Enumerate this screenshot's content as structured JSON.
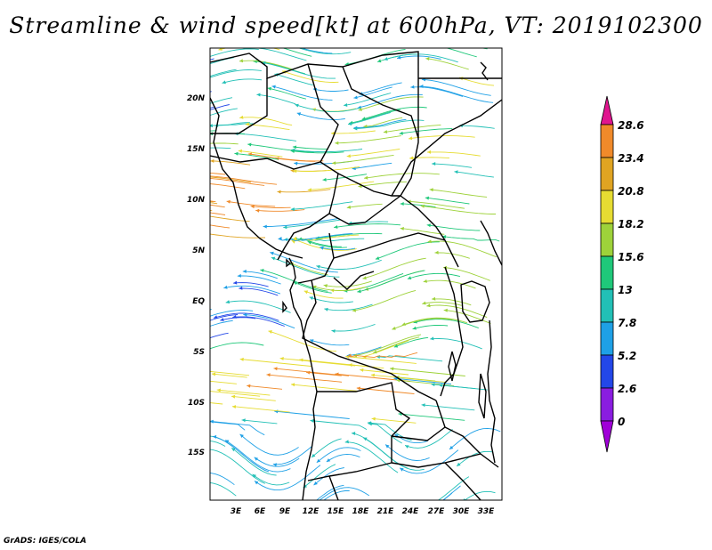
{
  "title": "Streamline & wind speed[kt] at 600hPa, VT: 2019102300",
  "credit": "GrADS: IGES/COLA",
  "map": {
    "lat_labels": [
      "20N",
      "15N",
      "10N",
      "5N",
      "EQ",
      "5S",
      "10S",
      "15S"
    ],
    "lon_labels": [
      "3E",
      "6E",
      "9E",
      "12E",
      "15E",
      "18E",
      "21E",
      "24E",
      "27E",
      "30E",
      "33E"
    ]
  },
  "colorbar": {
    "labels": [
      "28.6",
      "23.4",
      "20.8",
      "18.2",
      "15.6",
      "13",
      "7.8",
      "5.2",
      "2.6",
      "0"
    ],
    "colors": {
      "magenta": "#e0158f",
      "orange": "#f08a2a",
      "gold": "#e0a422",
      "yellow": "#e6dc32",
      "lime": "#9ed23a",
      "green": "#1fc87a",
      "teal": "#22c0b6",
      "sky": "#1ea0e6",
      "blue": "#2347e8",
      "purple": "#8a1de0",
      "violet": "#a000d8"
    }
  }
}
